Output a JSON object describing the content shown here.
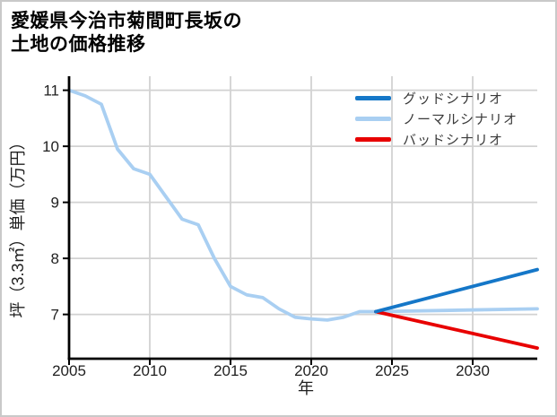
{
  "page": {
    "background": "#ffffff",
    "border_color": "#c9c9c9"
  },
  "header": {
    "title_line1": "愛媛県今治市菊間町長坂の",
    "title_line2": "土地の価格推移"
  },
  "chart_data": {
    "type": "line",
    "title": "愛媛県今治市菊間町長坂の土地の価格推移",
    "xlabel": "年",
    "ylabel": "坪（3.3㎡）単価（万円）",
    "xlim": [
      2005,
      2034
    ],
    "ylim": [
      6.21,
      11.25
    ],
    "x_ticks": [
      2005,
      2010,
      2015,
      2020,
      2025,
      2030
    ],
    "y_ticks": [
      7,
      8,
      9,
      10,
      11
    ],
    "grid": true,
    "legend_position": "upper right",
    "colors": {
      "good": "#1577c8",
      "normal": "#a9cff2",
      "bad": "#e80000",
      "grid": "#d2d2d2",
      "axis": "#000000",
      "tick_label": "#1f1f1f",
      "legend_text": "#3a3a3a"
    },
    "series": [
      {
        "name": "グッドシナリオ",
        "key": "good",
        "color": "#1577c8",
        "x": [
          2024,
          2034
        ],
        "y": [
          7.05,
          7.8
        ]
      },
      {
        "name": "ノーマルシナリオ",
        "key": "normal",
        "color": "#a9cff2",
        "x": [
          2005,
          2006,
          2007,
          2008,
          2009,
          2010,
          2011,
          2012,
          2013,
          2014,
          2015,
          2016,
          2017,
          2018,
          2019,
          2020,
          2021,
          2022,
          2023,
          2024,
          2034
        ],
        "y": [
          11.0,
          10.9,
          10.75,
          9.95,
          9.6,
          9.5,
          9.1,
          8.7,
          8.6,
          8.0,
          7.5,
          7.35,
          7.3,
          7.1,
          6.95,
          6.92,
          6.9,
          6.95,
          7.05,
          7.05,
          7.1
        ]
      },
      {
        "name": "バッドシナリオ",
        "key": "bad",
        "color": "#e80000",
        "x": [
          2024,
          2034
        ],
        "y": [
          7.05,
          6.4
        ]
      }
    ]
  }
}
